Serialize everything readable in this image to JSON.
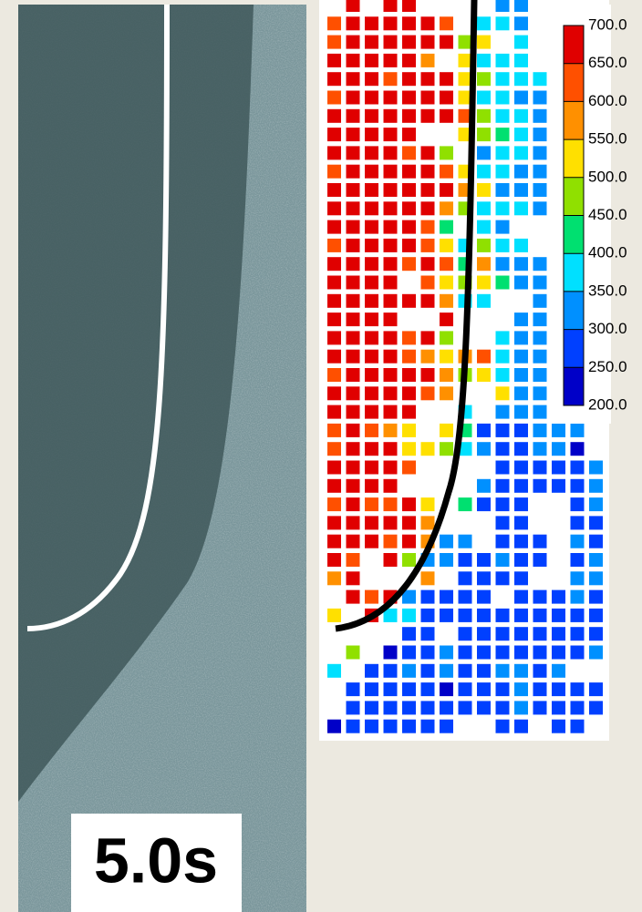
{
  "image": {
    "label": "5.0s"
  },
  "chart_data": {
    "type": "heatmap",
    "clim": [
      200,
      700
    ],
    "colors": [
      "#0000c8",
      "#0040ff",
      "#0090ff",
      "#00e0ff",
      "#00e070",
      "#90e000",
      "#ffe000",
      "#ff9000",
      "#ff5000",
      "#e00000"
    ],
    "colorbar_ticks": [
      {
        "value": 700,
        "label": "700.0"
      },
      {
        "value": 650,
        "label": "650.0"
      },
      {
        "value": 600,
        "label": "600.0"
      },
      {
        "value": 550,
        "label": "550.0"
      },
      {
        "value": 500,
        "label": "500.0"
      },
      {
        "value": 450,
        "label": "450.0"
      },
      {
        "value": 400,
        "label": "400.0"
      },
      {
        "value": 350,
        "label": "350.0"
      },
      {
        "value": 300,
        "label": "300.0"
      },
      {
        "value": 250,
        "label": "250.0"
      },
      {
        "value": 200,
        "label": "200.0"
      }
    ],
    "values": [
      [
        null,
        680,
        null,
        680,
        680,
        null,
        null,
        null,
        null,
        320,
        320,
        null,
        null,
        null,
        null
      ],
      [
        620,
        680,
        680,
        680,
        680,
        680,
        620,
        null,
        370,
        370,
        320,
        null,
        null,
        null,
        null
      ],
      [
        620,
        680,
        680,
        680,
        680,
        680,
        680,
        470,
        520,
        null,
        370,
        null,
        null,
        null,
        null
      ],
      [
        680,
        680,
        680,
        680,
        680,
        580,
        null,
        520,
        370,
        370,
        370,
        null,
        null,
        null,
        null
      ],
      [
        680,
        680,
        680,
        620,
        680,
        680,
        680,
        520,
        470,
        370,
        370,
        370,
        null,
        null,
        null
      ],
      [
        620,
        680,
        680,
        680,
        680,
        680,
        680,
        520,
        370,
        370,
        320,
        320,
        null,
        null,
        null
      ],
      [
        680,
        680,
        680,
        680,
        680,
        680,
        680,
        620,
        470,
        370,
        370,
        320,
        null,
        null,
        null
      ],
      [
        680,
        680,
        680,
        680,
        680,
        null,
        null,
        520,
        470,
        420,
        370,
        320,
        null,
        null,
        null
      ],
      [
        680,
        680,
        680,
        680,
        620,
        680,
        470,
        null,
        320,
        370,
        370,
        320,
        null,
        null,
        null
      ],
      [
        620,
        680,
        680,
        680,
        680,
        680,
        620,
        520,
        370,
        370,
        320,
        320,
        null,
        null,
        null
      ],
      [
        680,
        680,
        680,
        680,
        680,
        680,
        680,
        580,
        520,
        320,
        320,
        320,
        null,
        null,
        null
      ],
      [
        680,
        680,
        680,
        680,
        680,
        680,
        580,
        470,
        370,
        370,
        370,
        320,
        null,
        null,
        null
      ],
      [
        680,
        680,
        680,
        680,
        680,
        620,
        420,
        null,
        370,
        320,
        null,
        null,
        null,
        null,
        null
      ],
      [
        620,
        680,
        680,
        680,
        680,
        620,
        520,
        370,
        470,
        370,
        370,
        null,
        null,
        null,
        null
      ],
      [
        680,
        680,
        680,
        680,
        620,
        680,
        620,
        420,
        580,
        320,
        320,
        320,
        null,
        null,
        null
      ],
      [
        680,
        680,
        680,
        680,
        null,
        620,
        520,
        470,
        520,
        420,
        320,
        320,
        null,
        null,
        null
      ],
      [
        680,
        680,
        680,
        680,
        680,
        680,
        580,
        370,
        370,
        null,
        null,
        320,
        null,
        null,
        null
      ],
      [
        680,
        680,
        680,
        680,
        null,
        null,
        680,
        null,
        null,
        null,
        320,
        320,
        null,
        null,
        null
      ],
      [
        680,
        680,
        680,
        680,
        620,
        680,
        470,
        null,
        null,
        370,
        320,
        320,
        null,
        null,
        null
      ],
      [
        680,
        680,
        680,
        680,
        620,
        580,
        520,
        580,
        620,
        370,
        320,
        320,
        null,
        null,
        null
      ],
      [
        620,
        680,
        680,
        680,
        680,
        680,
        580,
        470,
        520,
        370,
        320,
        320,
        null,
        null,
        null
      ],
      [
        680,
        680,
        680,
        680,
        680,
        620,
        580,
        null,
        null,
        520,
        320,
        320,
        null,
        null,
        null
      ],
      [
        680,
        680,
        680,
        680,
        680,
        null,
        null,
        370,
        null,
        320,
        320,
        320,
        null,
        null,
        null
      ],
      [
        620,
        680,
        620,
        580,
        520,
        null,
        520,
        420,
        280,
        280,
        280,
        320,
        320,
        320,
        null
      ],
      [
        620,
        680,
        680,
        680,
        520,
        520,
        470,
        370,
        320,
        280,
        280,
        320,
        320,
        230,
        null
      ],
      [
        680,
        680,
        680,
        680,
        620,
        null,
        null,
        null,
        null,
        280,
        280,
        280,
        280,
        280,
        320
      ],
      [
        680,
        680,
        680,
        680,
        null,
        null,
        null,
        null,
        320,
        280,
        280,
        280,
        280,
        280,
        320
      ],
      [
        620,
        680,
        620,
        620,
        680,
        520,
        null,
        420,
        280,
        280,
        280,
        null,
        null,
        280,
        320
      ],
      [
        680,
        680,
        680,
        680,
        680,
        580,
        null,
        null,
        null,
        280,
        280,
        null,
        null,
        280,
        280
      ],
      [
        680,
        680,
        680,
        620,
        680,
        580,
        320,
        320,
        null,
        280,
        280,
        280,
        null,
        320,
        280
      ],
      [
        680,
        620,
        null,
        680,
        470,
        320,
        320,
        280,
        280,
        320,
        280,
        280,
        null,
        280,
        320
      ],
      [
        580,
        680,
        null,
        null,
        null,
        580,
        null,
        280,
        280,
        280,
        280,
        null,
        null,
        320,
        320
      ],
      [
        null,
        680,
        620,
        680,
        320,
        280,
        280,
        280,
        280,
        null,
        280,
        280,
        280,
        320,
        280
      ],
      [
        520,
        null,
        680,
        370,
        370,
        280,
        280,
        280,
        280,
        280,
        280,
        280,
        280,
        280,
        280
      ],
      [
        null,
        null,
        null,
        null,
        280,
        280,
        null,
        280,
        280,
        280,
        280,
        280,
        280,
        280,
        280
      ],
      [
        null,
        470,
        null,
        230,
        280,
        280,
        320,
        280,
        280,
        280,
        280,
        280,
        280,
        280,
        320
      ],
      [
        370,
        null,
        280,
        280,
        320,
        280,
        320,
        280,
        280,
        320,
        320,
        280,
        320,
        null,
        null
      ],
      [
        null,
        280,
        280,
        280,
        280,
        280,
        230,
        280,
        280,
        280,
        320,
        280,
        280,
        280,
        280
      ],
      [
        null,
        280,
        280,
        280,
        280,
        280,
        280,
        280,
        280,
        280,
        320,
        280,
        280,
        280,
        280
      ],
      [
        230,
        280,
        280,
        280,
        280,
        280,
        280,
        null,
        null,
        280,
        280,
        null,
        280,
        280,
        null
      ]
    ]
  }
}
